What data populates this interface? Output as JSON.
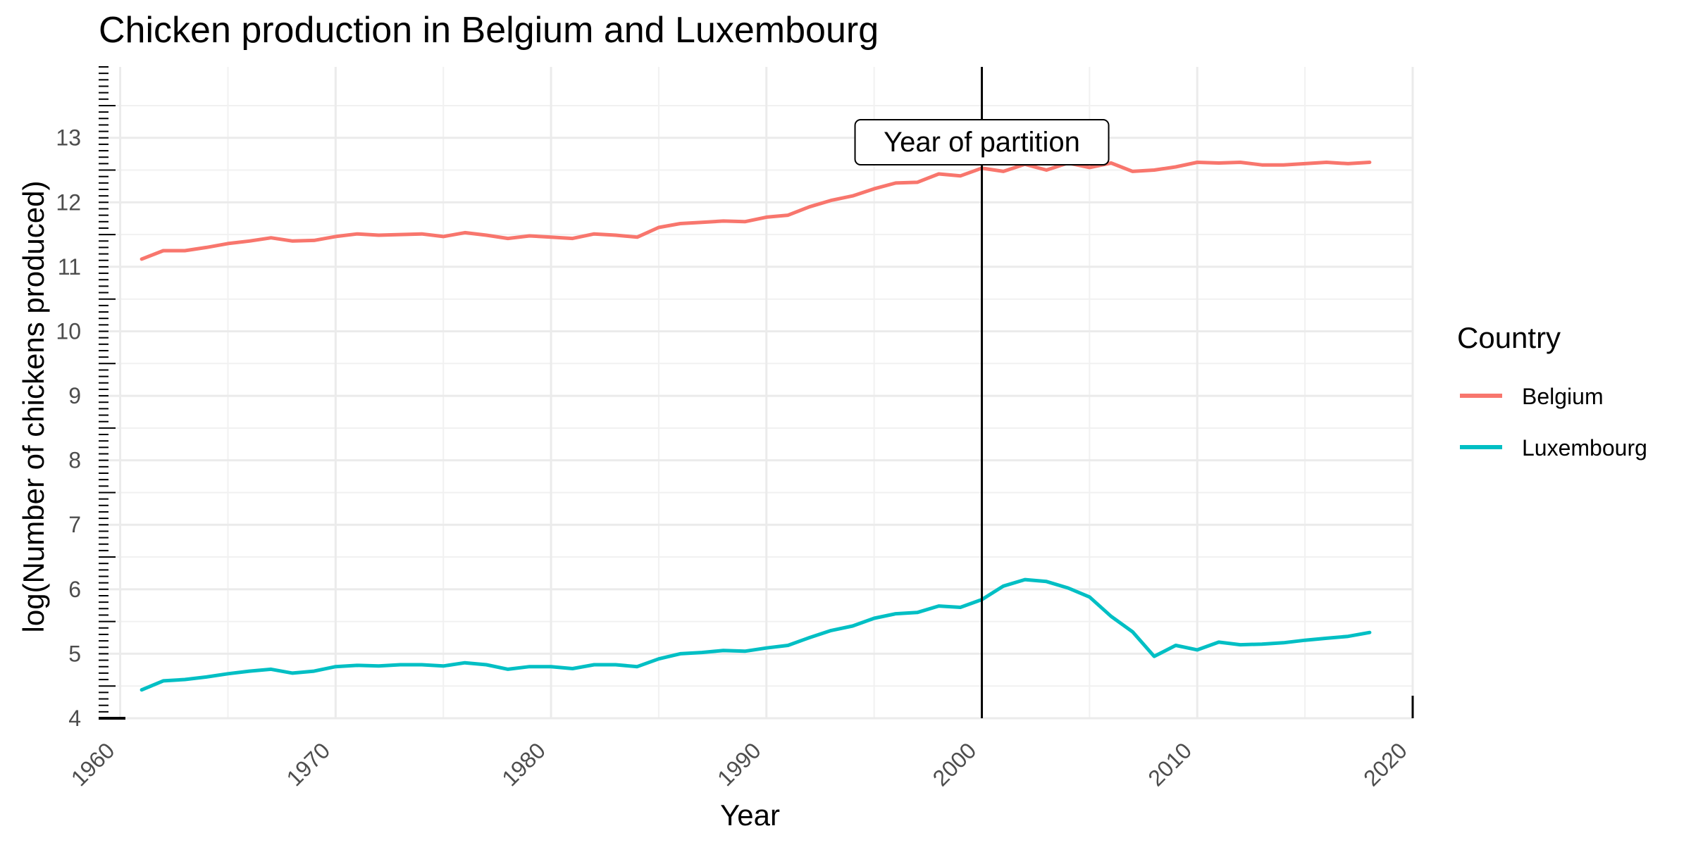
{
  "chart_data": {
    "type": "line",
    "title": "Chicken production in Belgium and Luxembourg",
    "xlabel": "Year",
    "ylabel": "log(Number of chickens produced)",
    "xlim": [
      1959,
      2020
    ],
    "ylim": [
      4,
      14.1
    ],
    "x_ticks": [
      "1960",
      "1970",
      "1980",
      "1990",
      "2000",
      "2010",
      "2020"
    ],
    "y_ticks": [
      "4",
      "5",
      "6",
      "7",
      "8",
      "9",
      "10",
      "11",
      "12",
      "13"
    ],
    "grid": true,
    "legend": {
      "title": "Country",
      "position": "right"
    },
    "annotation": {
      "text": "Year of partition",
      "x": 2000
    },
    "x": [
      1961,
      1962,
      1963,
      1964,
      1965,
      1966,
      1967,
      1968,
      1969,
      1970,
      1971,
      1972,
      1973,
      1974,
      1975,
      1976,
      1977,
      1978,
      1979,
      1980,
      1981,
      1982,
      1983,
      1984,
      1985,
      1986,
      1987,
      1988,
      1989,
      1990,
      1991,
      1992,
      1993,
      1994,
      1995,
      1996,
      1997,
      1998,
      1999,
      2000,
      2001,
      2002,
      2003,
      2004,
      2005,
      2006,
      2007,
      2008,
      2009,
      2010,
      2011,
      2012,
      2013,
      2014,
      2015,
      2016,
      2017,
      2018
    ],
    "series": [
      {
        "name": "Belgium",
        "color": "#F8766D",
        "values": [
          11.12,
          11.25,
          11.25,
          11.3,
          11.36,
          11.4,
          11.45,
          11.4,
          11.41,
          11.47,
          11.51,
          11.49,
          11.5,
          11.51,
          11.47,
          11.53,
          11.49,
          11.44,
          11.48,
          11.46,
          11.44,
          11.51,
          11.49,
          11.46,
          11.61,
          11.67,
          11.69,
          11.71,
          11.7,
          11.77,
          11.8,
          11.93,
          12.03,
          12.1,
          12.21,
          12.3,
          12.31,
          12.44,
          12.41,
          12.53,
          12.48,
          12.59,
          12.5,
          12.61,
          12.54,
          12.61,
          12.48,
          12.5,
          12.55,
          12.62,
          12.61,
          12.62,
          12.58,
          12.58,
          12.6,
          12.62,
          12.6,
          12.62
        ]
      },
      {
        "name": "Luxembourg",
        "color": "#00BFC4",
        "values": [
          4.44,
          4.58,
          4.6,
          4.64,
          4.69,
          4.73,
          4.76,
          4.7,
          4.73,
          4.8,
          4.82,
          4.81,
          4.83,
          4.83,
          4.81,
          4.86,
          4.83,
          4.76,
          4.8,
          4.8,
          4.77,
          4.83,
          4.83,
          4.8,
          4.92,
          5.0,
          5.02,
          5.05,
          5.04,
          5.09,
          5.13,
          5.25,
          5.36,
          5.43,
          5.55,
          5.62,
          5.64,
          5.74,
          5.72,
          5.84,
          6.05,
          6.15,
          6.12,
          6.02,
          5.88,
          5.58,
          5.34,
          4.96,
          5.13,
          5.06,
          5.18,
          5.14,
          5.15,
          5.17,
          5.21,
          5.24,
          5.27,
          5.33
        ]
      }
    ]
  }
}
